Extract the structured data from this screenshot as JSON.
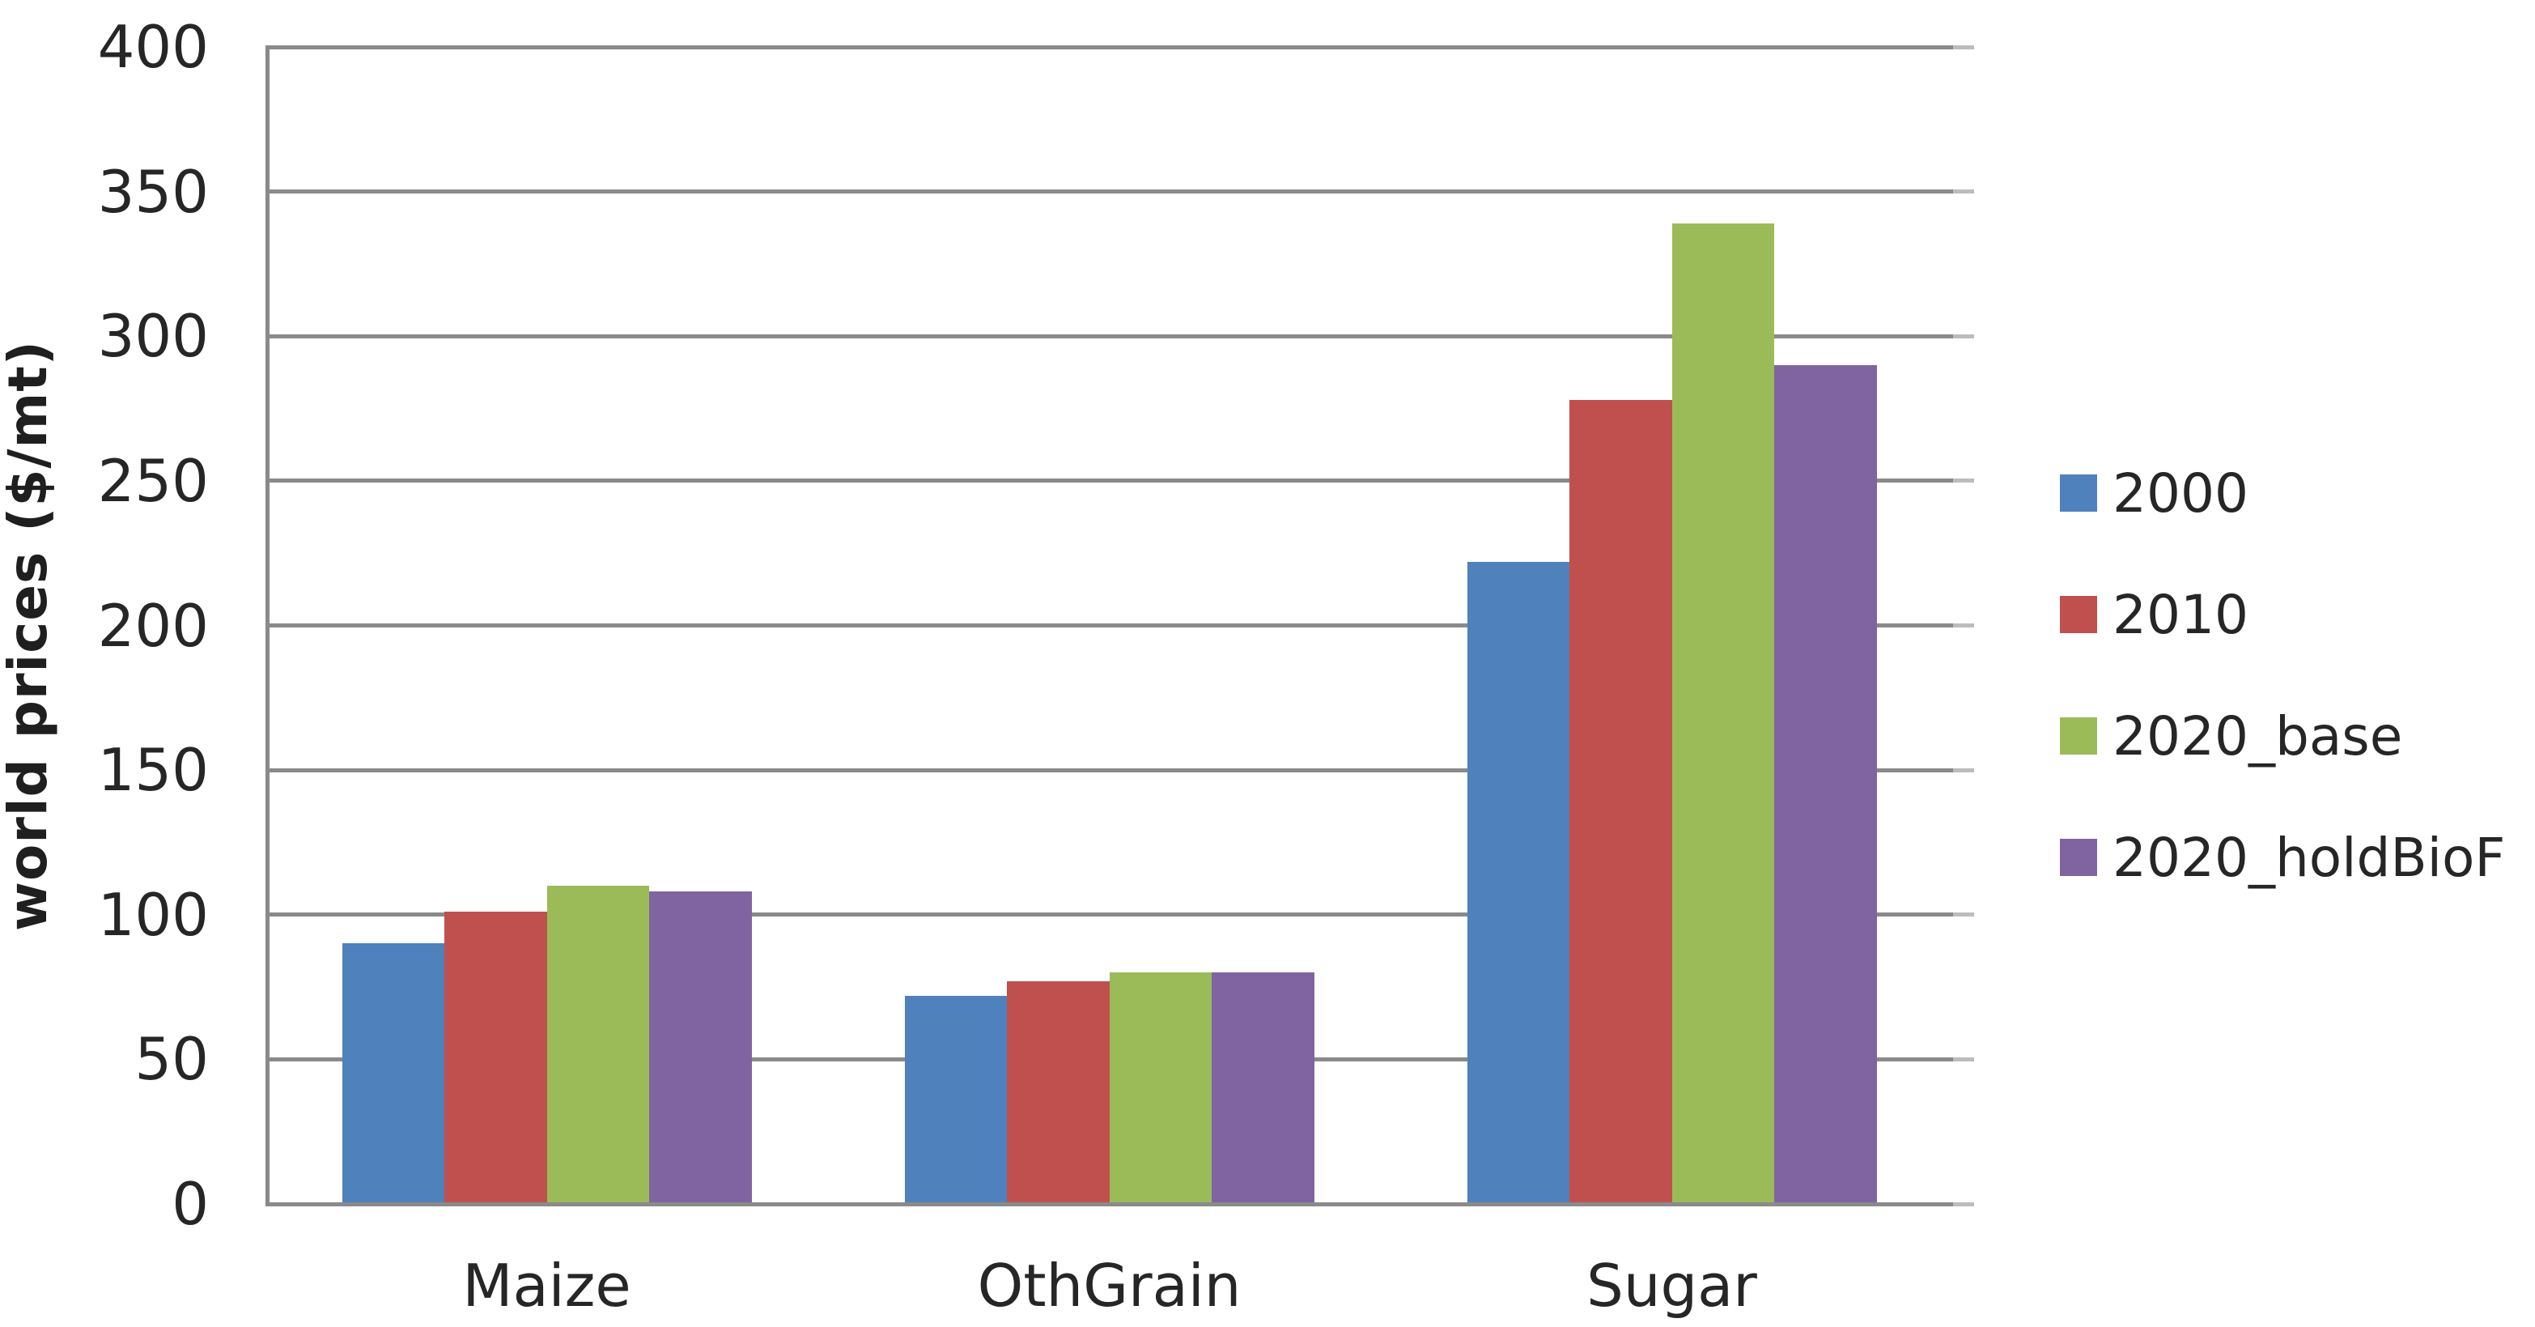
{
  "chart_data": {
    "type": "bar",
    "title": "",
    "xlabel": "",
    "ylabel": "world prices ($/mt)",
    "categories": [
      "Maize",
      "OthGrain",
      "Sugar"
    ],
    "series": [
      {
        "name": "2000",
        "color": "#4F81BD",
        "values": [
          90,
          72,
          222
        ]
      },
      {
        "name": "2010",
        "color": "#C0504D",
        "values": [
          101,
          77,
          278
        ]
      },
      {
        "name": "2020_base",
        "color": "#9BBB59",
        "values": [
          110,
          80,
          339
        ]
      },
      {
        "name": "2020_holdBioF",
        "color": "#8064A2",
        "values": [
          108,
          80,
          290
        ]
      }
    ],
    "ylim": [
      0,
      400
    ],
    "ytick_interval": 50,
    "ytick_labels": [
      "400",
      "350",
      "300",
      "250",
      "200",
      "150",
      "100",
      "50",
      "0"
    ],
    "grid": true,
    "legend_position": "right",
    "gridline_color": "#8a8a8a",
    "axis_text_color": "#262626"
  }
}
